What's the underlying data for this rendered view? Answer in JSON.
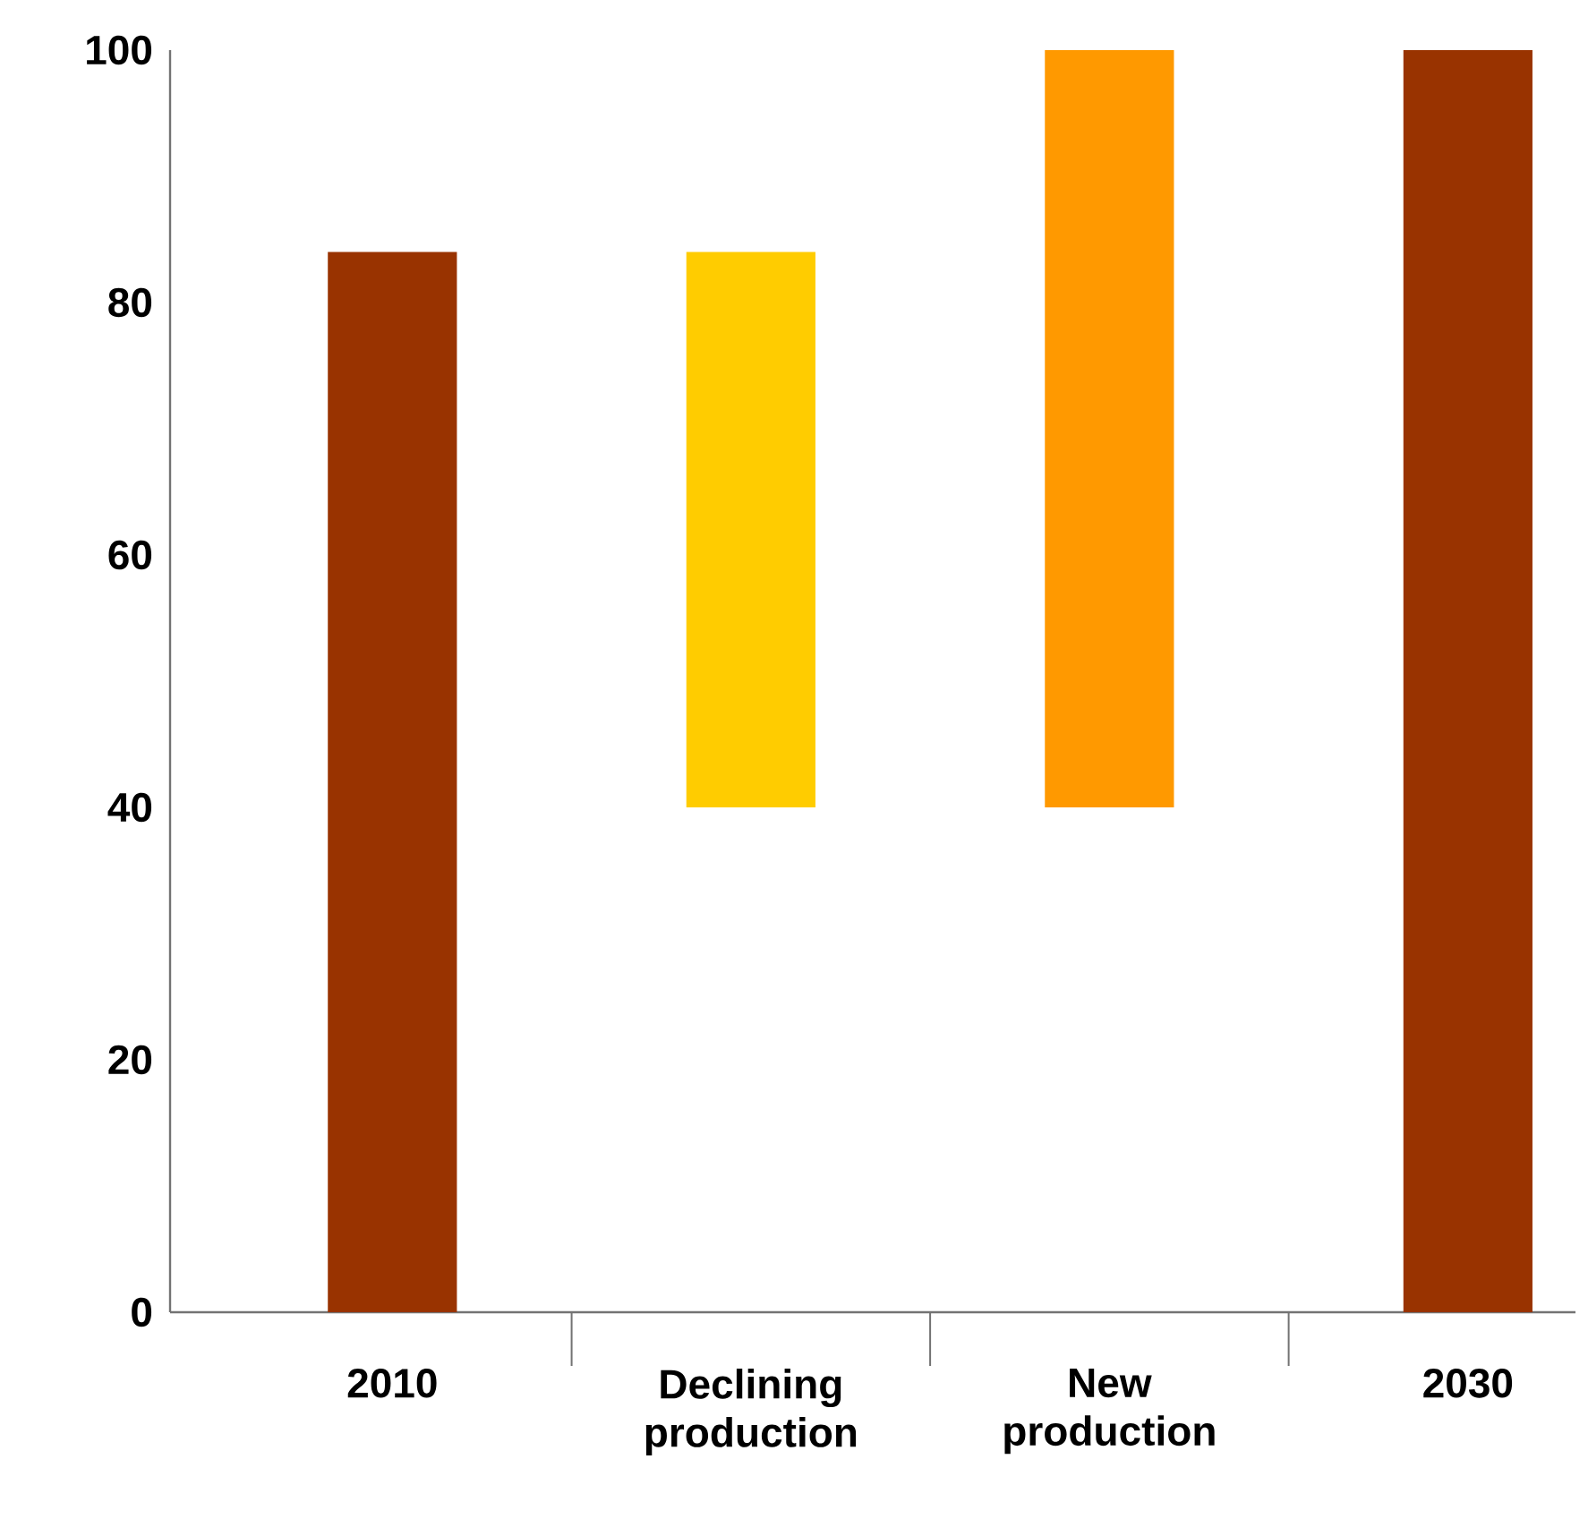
{
  "chart_data": {
    "type": "bar",
    "categories": [
      "2010",
      "Declining production",
      "New production",
      "2030"
    ],
    "values": [
      84,
      44,
      60,
      100
    ],
    "base": [
      0,
      40,
      40,
      0
    ],
    "colors": [
      "#993300",
      "#ffcc00",
      "#ff9900",
      "#993300"
    ],
    "ylim": [
      0,
      100
    ],
    "yticks": [
      0,
      20,
      40,
      60,
      80,
      100
    ],
    "grid": false
  }
}
